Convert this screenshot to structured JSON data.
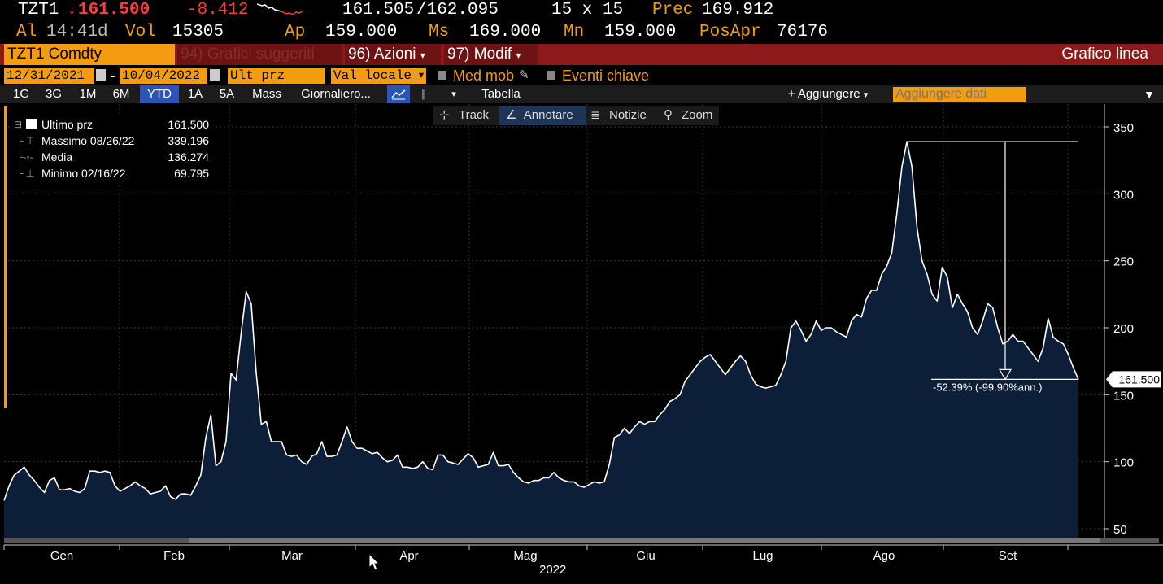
{
  "quote": {
    "ticker": "TZT1",
    "last_price": "161.500",
    "change": "-8.412",
    "bid": "161.505",
    "ask": "/162.095",
    "size": "15 x 15",
    "prev_label": "Prec",
    "prev_value": "169.912",
    "time_label": "Al",
    "time_value": "14:41d",
    "vol_label": "Vol",
    "vol_value": "15305",
    "open_label": "Ap",
    "open_value": "159.000",
    "high_label": "Ms",
    "high_value": "169.000",
    "low_label": "Mn",
    "low_value": "159.000",
    "oi_label": "PosApr",
    "oi_value": "76176"
  },
  "menu": {
    "ticker_field": "TZT1 Comdty",
    "suggested": "94) Grafici suggeriti",
    "actions": "96) Azioni",
    "modify": "97) Modif",
    "chart_type": "Grafico linea"
  },
  "controls": {
    "start_date": "12/31/2021",
    "end_date": "10/04/2022",
    "field": "Ult prz",
    "currency": "Val locale",
    "moving_avg": "Med mob",
    "key_events": "Eventi chiave"
  },
  "toolbar": {
    "periods": [
      "1G",
      "3G",
      "1M",
      "6M",
      "YTD",
      "1A",
      "5A",
      "Mass"
    ],
    "active_period": "YTD",
    "frequency": "Giornaliero...",
    "table": "Tabella",
    "add": "+ Aggiungere",
    "add_data_placeholder": "Aggiungere dati"
  },
  "subtoolbar": {
    "track": "Track",
    "annotate": "Annotare",
    "news": "Notizie",
    "zoom": "Zoom"
  },
  "legend": [
    {
      "name": "Ultimo prz",
      "value": "161.500"
    },
    {
      "name": "Massimo 08/26/22",
      "value": "339.196"
    },
    {
      "name": "Media",
      "value": "136.274"
    },
    {
      "name": "Minimo 02/16/22",
      "value": "69.795"
    }
  ],
  "colors": {
    "accent": "#f39c12",
    "negative": "#ff3b3b",
    "area_fill": "#0d1e38",
    "line": "#ffffff",
    "menu_bar": "#8c1a1a"
  },
  "chart_data": {
    "type": "area",
    "year_label": "2022",
    "x_labels": [
      "Gen",
      "Feb",
      "Mar",
      "Apr",
      "Mag",
      "Giu",
      "Lug",
      "Ago",
      "Set"
    ],
    "ylim": [
      45,
      360
    ],
    "yticks": [
      50,
      100,
      150,
      200,
      250,
      300,
      350
    ],
    "grid": true,
    "last_value_label": "161.500",
    "drawdown_annotation": "-52.39% (-99.90%ann.)",
    "values": [
      71,
      82,
      90,
      93,
      96,
      90,
      86,
      81,
      77,
      86,
      88,
      79,
      79,
      80,
      78,
      77,
      80,
      93,
      93,
      92,
      93,
      92,
      82,
      78,
      80,
      82,
      85,
      82,
      80,
      76,
      77,
      78,
      82,
      74,
      72,
      76,
      76,
      75,
      82,
      90,
      118,
      135,
      97,
      100,
      115,
      166,
      161,
      196,
      227,
      218,
      166,
      128,
      130,
      115,
      115,
      115,
      105,
      104,
      105,
      100,
      98,
      104,
      106,
      115,
      104,
      104,
      105,
      115,
      126,
      115,
      110,
      110,
      108,
      106,
      107,
      103,
      100,
      101,
      105,
      96,
      96,
      95,
      96,
      100,
      95,
      94,
      105,
      105,
      100,
      99,
      98,
      102,
      106,
      103,
      96,
      97,
      98,
      107,
      97,
      97,
      98,
      92,
      88,
      85,
      84,
      86,
      86,
      88,
      88,
      92,
      88,
      86,
      85,
      85,
      82,
      81,
      83,
      85,
      84,
      85,
      98,
      118,
      120,
      125,
      121,
      126,
      130,
      128,
      130,
      130,
      135,
      139,
      145,
      147,
      150,
      160,
      165,
      170,
      175,
      178,
      180,
      175,
      170,
      165,
      170,
      175,
      179,
      175,
      165,
      158,
      156,
      155,
      156,
      157,
      165,
      175,
      200,
      205,
      198,
      190,
      195,
      205,
      198,
      200,
      200,
      197,
      195,
      193,
      205,
      210,
      208,
      222,
      228,
      228,
      240,
      246,
      256,
      285,
      320,
      339,
      320,
      275,
      250,
      240,
      225,
      220,
      245,
      238,
      215,
      225,
      218,
      212,
      200,
      195,
      205,
      218,
      215,
      200,
      188,
      190,
      195,
      190,
      190,
      185,
      180,
      175,
      185,
      207,
      193,
      190,
      188,
      180,
      170,
      161.5
    ]
  }
}
